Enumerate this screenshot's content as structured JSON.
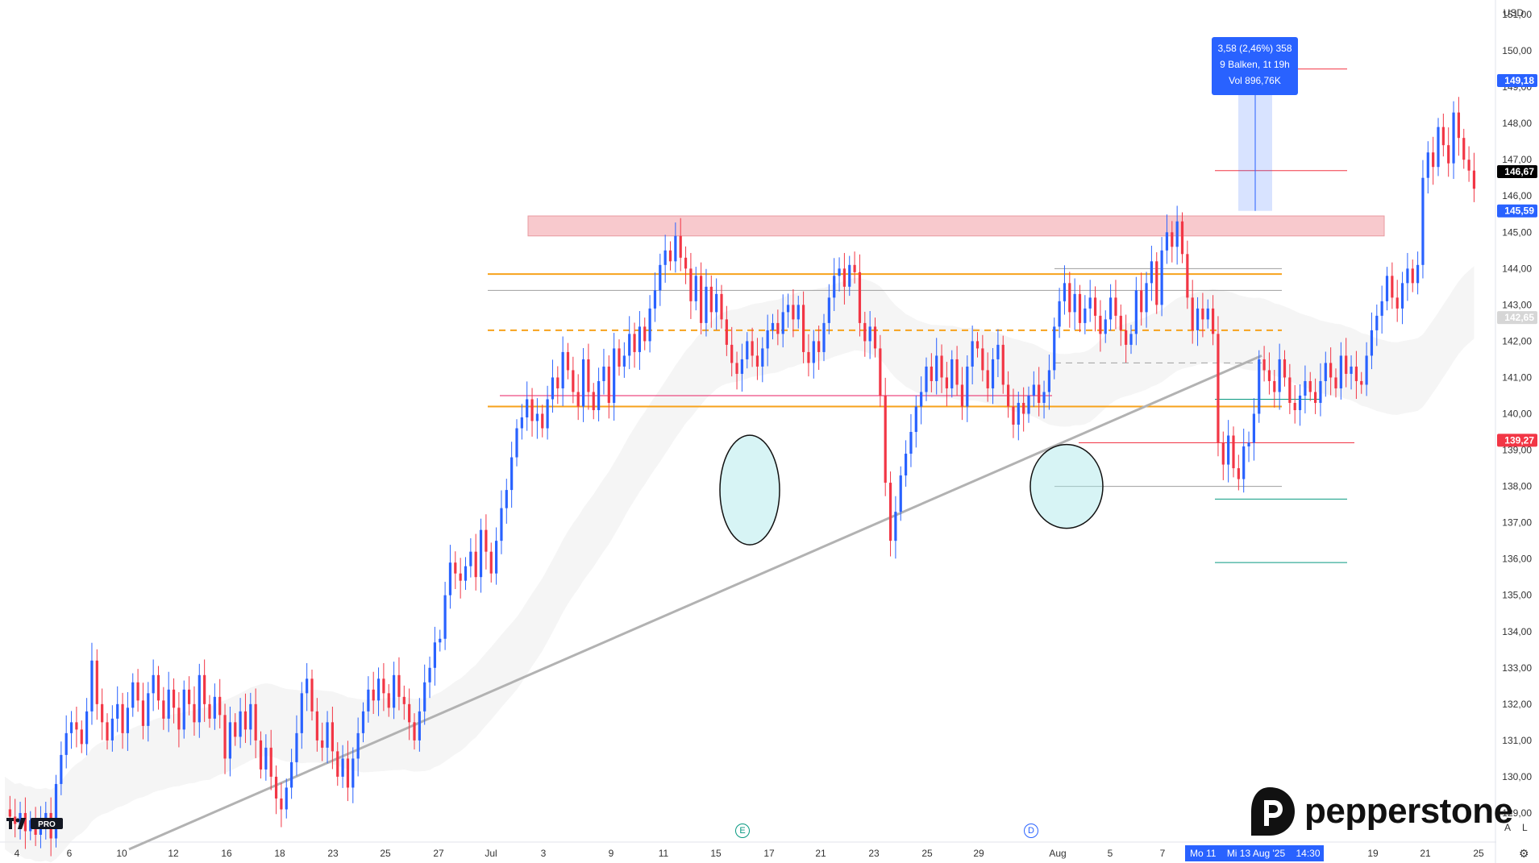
{
  "chart_data": {
    "type": "candlestick",
    "currency": "USD",
    "y_ticks": [
      "129,00",
      "130,00",
      "131,00",
      "132,00",
      "133,00",
      "134,00",
      "135,00",
      "136,00",
      "137,00",
      "138,00",
      "139,00",
      "140,00",
      "141,00",
      "142,00",
      "143,00",
      "144,00",
      "145,00",
      "146,00",
      "147,00",
      "148,00",
      "149,00",
      "150,00",
      "151,00"
    ],
    "ylim": [
      128.2,
      151.4
    ],
    "x_ticks": [
      "4",
      "6",
      "10",
      "12",
      "16",
      "18",
      "23",
      "25",
      "27",
      "Jul",
      "3",
      "9",
      "11",
      "15",
      "17",
      "21",
      "23",
      "25",
      "29",
      "Aug",
      "5",
      "7",
      "19",
      "21",
      "25"
    ],
    "price_tags": [
      {
        "label": "149,18",
        "value": 149.18,
        "color": "#2962ff"
      },
      {
        "label": "146,67",
        "value": 146.67,
        "color": "#000000"
      },
      {
        "label": "145,59",
        "value": 145.59,
        "color": "#2962ff"
      },
      {
        "label": "142,65",
        "value": 142.65,
        "color": "#d6d6d6"
      },
      {
        "label": "139,27",
        "value": 139.27,
        "color": "#f23645"
      }
    ],
    "resistance_zone": [
      144.9,
      145.45
    ],
    "horizontal_levels": [
      {
        "value": 143.85,
        "color": "#f7a21b",
        "style": "solid"
      },
      {
        "value": 143.4,
        "color": "#9e9e9e",
        "style": "solid"
      },
      {
        "value": 142.3,
        "color": "#f7a21b",
        "style": "dashed"
      },
      {
        "value": 140.5,
        "color": "#e91e63",
        "style": "solid"
      },
      {
        "value": 140.2,
        "color": "#f7a21b",
        "style": "solid"
      },
      {
        "value": 141.4,
        "color": "#9e9e9e",
        "style": "dashed"
      },
      {
        "value": 144.0,
        "color": "#9e9e9e",
        "style": "solid"
      },
      {
        "value": 140.4,
        "color": "#089981",
        "style": "solid"
      },
      {
        "value": 139.2,
        "color": "#f23645",
        "style": "solid"
      },
      {
        "value": 138.0,
        "color": "#9e9e9e",
        "style": "solid"
      },
      {
        "value": 137.65,
        "color": "#089981",
        "style": "solid"
      },
      {
        "value": 135.9,
        "color": "#089981",
        "style": "solid"
      },
      {
        "value": 146.7,
        "color": "#f23645",
        "style": "solid"
      },
      {
        "value": 149.5,
        "color": "#f23645",
        "style": "solid"
      }
    ],
    "trendline": {
      "from": {
        "bar": 0,
        "value": 128.0
      },
      "to": {
        "bar": 241,
        "value": 141.6
      }
    },
    "series": {
      "colors": {
        "up": "#2962ff",
        "down": "#f23645"
      },
      "path": [
        129.1,
        128.9,
        128.7,
        129.0,
        128.5,
        128.8,
        128.4,
        128.7,
        129.0,
        128.3,
        129.8,
        130.6,
        131.2,
        131.5,
        131.3,
        130.9,
        131.8,
        133.2,
        132.0,
        131.5,
        131.0,
        131.6,
        132.0,
        131.2,
        131.9,
        132.6,
        132.1,
        131.4,
        132.3,
        132.8,
        132.1,
        131.6,
        132.4,
        131.9,
        131.3,
        132.4,
        132.0,
        131.5,
        132.8,
        132.0,
        131.6,
        132.2,
        131.7,
        130.5,
        131.5,
        131.1,
        131.8,
        131.3,
        132.0,
        131.0,
        130.2,
        130.8,
        130.0,
        129.4,
        129.1,
        129.7,
        130.4,
        131.2,
        132.3,
        132.7,
        131.8,
        131.0,
        130.8,
        131.5,
        130.7,
        130.0,
        130.5,
        129.7,
        130.5,
        131.2,
        131.8,
        132.4,
        132.1,
        132.7,
        132.3,
        131.9,
        132.8,
        132.2,
        132.0,
        131.5,
        131.0,
        131.8,
        132.6,
        133.0,
        133.7,
        133.8,
        135.0,
        135.9,
        135.6,
        135.4,
        135.8,
        136.2,
        135.5,
        136.8,
        136.2,
        135.6,
        136.5,
        137.4,
        137.9,
        138.8,
        139.6,
        139.9,
        140.4,
        139.8,
        140.0,
        139.6,
        140.4,
        141.0,
        140.7,
        141.7,
        141.2,
        140.6,
        140.2,
        141.5,
        140.6,
        140.1,
        140.9,
        141.3,
        140.3,
        141.8,
        141.3,
        141.6,
        142.2,
        141.7,
        142.4,
        142.0,
        142.9,
        143.4,
        144.1,
        144.5,
        144.2,
        144.9,
        144.3,
        144.0,
        143.1,
        143.8,
        142.5,
        143.5,
        142.8,
        143.3,
        142.6,
        141.9,
        141.4,
        141.1,
        141.5,
        142.0,
        141.6,
        141.3,
        141.8,
        142.3,
        142.5,
        142.2,
        142.8,
        143.0,
        142.6,
        143.0,
        141.7,
        141.4,
        142.0,
        141.7,
        142.5,
        143.2,
        143.8,
        144.0,
        143.5,
        144.1,
        143.9,
        142.5,
        142.0,
        142.4,
        141.8,
        140.5,
        138.1,
        136.5,
        137.3,
        138.3,
        138.9,
        139.5,
        140.2,
        140.6,
        141.3,
        140.9,
        141.6,
        141.0,
        140.7,
        141.5,
        140.8,
        140.2,
        141.3,
        142.0,
        141.8,
        141.2,
        140.7,
        141.5,
        141.9,
        140.8,
        140.2,
        139.7,
        140.3,
        140.0,
        140.5,
        140.8,
        140.3,
        140.6,
        141.2,
        142.4,
        143.1,
        143.6,
        142.8,
        143.3,
        142.5,
        142.9,
        143.2,
        142.7,
        142.2,
        142.6,
        143.2,
        142.7,
        142.3,
        141.9,
        142.2,
        143.4,
        142.8,
        143.6,
        144.2,
        143.0,
        144.5,
        145.0,
        144.6,
        145.3,
        144.4,
        143.2,
        142.3,
        142.9,
        142.6,
        142.9,
        142.2,
        139.2,
        138.6,
        139.4,
        138.5,
        138.2,
        139.1,
        139.2,
        140.0,
        141.5,
        141.2,
        140.9,
        140.6,
        141.5,
        141.0,
        140.3,
        140.1,
        140.5,
        140.9,
        140.6,
        140.3,
        140.9,
        141.4,
        141.0,
        140.7,
        141.6,
        141.1,
        141.3,
        140.9,
        140.8,
        141.6,
        142.3,
        142.7,
        143.1,
        143.8,
        143.2,
        142.9,
        143.6,
        144.0,
        143.6,
        144.1,
        146.5,
        147.2,
        146.8,
        147.9,
        147.4,
        146.9,
        148.3,
        147.6,
        147.0,
        146.7,
        146.2
      ]
    }
  },
  "toolbar": {
    "measure_line1": "3,58 (2,46%) 358",
    "measure_line2": "9 Balken, 1t 19h",
    "measure_line3": "Vol 896,76K",
    "date_left": "Mo 11",
    "date_right": "Mi 13 Aug '25",
    "date_time": "14:30",
    "btn_a": "A",
    "btn_l": "L",
    "brand": "pepperstone",
    "badge_e": "E",
    "badge_d": "D",
    "tv_pro": "PRO"
  }
}
